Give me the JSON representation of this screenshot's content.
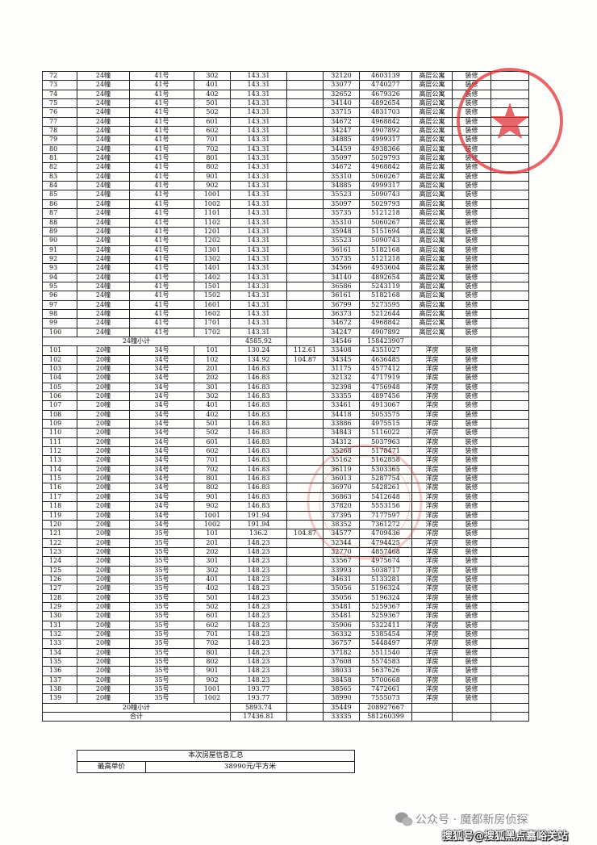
{
  "table": {
    "rows": [
      [
        "72",
        "24幢",
        "41号",
        "302",
        "143.31",
        null,
        "32120",
        "4603139",
        "高层公寓",
        "装修"
      ],
      [
        "73",
        "24幢",
        "41号",
        "401",
        "143.31",
        null,
        "33077",
        "4740277",
        "高层公寓",
        "装修"
      ],
      [
        "74",
        "24幢",
        "41号",
        "402",
        "143.31",
        null,
        "32652",
        "4679326",
        "高层公寓",
        "装修"
      ],
      [
        "75",
        "24幢",
        "41号",
        "501",
        "143.31",
        null,
        "34140",
        "4892654",
        "高层公寓",
        "装修"
      ],
      [
        "76",
        "24幢",
        "41号",
        "502",
        "143.31",
        null,
        "33715",
        "4831703",
        "高层公寓",
        "装修"
      ],
      [
        "77",
        "24幢",
        "41号",
        "601",
        "143.31",
        null,
        "34672",
        "4968842",
        "高层公寓",
        "装修"
      ],
      [
        "78",
        "24幢",
        "41号",
        "602",
        "143.31",
        null,
        "34247",
        "4907892",
        "高层公寓",
        "装修"
      ],
      [
        "79",
        "24幢",
        "41号",
        "701",
        "143.31",
        null,
        "34885",
        "4999317",
        "高层公寓",
        "装修"
      ],
      [
        "80",
        "24幢",
        "41号",
        "702",
        "143.31",
        null,
        "34459",
        "4938366",
        "高层公寓",
        "装修"
      ],
      [
        "81",
        "24幢",
        "41号",
        "801",
        "143.31",
        null,
        "35097",
        "5029793",
        "高层公寓",
        "装修"
      ],
      [
        "82",
        "24幢",
        "41号",
        "802",
        "143.31",
        null,
        "34672",
        "4968842",
        "高层公寓",
        "装修"
      ],
      [
        "83",
        "24幢",
        "41号",
        "901",
        "143.31",
        null,
        "35310",
        "5060267",
        "高层公寓",
        "装修"
      ],
      [
        "84",
        "24幢",
        "41号",
        "902",
        "143.31",
        null,
        "34885",
        "4999317",
        "高层公寓",
        "装修"
      ],
      [
        "85",
        "24幢",
        "41号",
        "1001",
        "143.31",
        null,
        "35523",
        "5090743",
        "高层公寓",
        "装修"
      ],
      [
        "86",
        "24幢",
        "41号",
        "1002",
        "143.31",
        null,
        "35097",
        "5029793",
        "高层公寓",
        "装修"
      ],
      [
        "87",
        "24幢",
        "41号",
        "1101",
        "143.31",
        null,
        "35735",
        "5121218",
        "高层公寓",
        "装修"
      ],
      [
        "88",
        "24幢",
        "41号",
        "1102",
        "143.31",
        null,
        "35310",
        "5060267",
        "高层公寓",
        "装修"
      ],
      [
        "89",
        "24幢",
        "41号",
        "1201",
        "143.31",
        null,
        "35948",
        "5151694",
        "高层公寓",
        "装修"
      ],
      [
        "90",
        "24幢",
        "41号",
        "1202",
        "143.31",
        null,
        "35523",
        "5090743",
        "高层公寓",
        "装修"
      ],
      [
        "91",
        "24幢",
        "41号",
        "1301",
        "143.31",
        null,
        "36161",
        "5182168",
        "高层公寓",
        "装修"
      ],
      [
        "92",
        "24幢",
        "41号",
        "1302",
        "143.31",
        null,
        "35735",
        "5121218",
        "高层公寓",
        "装修"
      ],
      [
        "93",
        "24幢",
        "41号",
        "1401",
        "143.31",
        null,
        "34566",
        "4953604",
        "高层公寓",
        "装修"
      ],
      [
        "94",
        "24幢",
        "41号",
        "1402",
        "143.31",
        null,
        "34140",
        "4892654",
        "高层公寓",
        "装修"
      ],
      [
        "95",
        "24幢",
        "41号",
        "1501",
        "143.31",
        null,
        "36586",
        "5243119",
        "高层公寓",
        "装修"
      ],
      [
        "96",
        "24幢",
        "41号",
        "1502",
        "143.31",
        null,
        "36161",
        "5182168",
        "高层公寓",
        "装修"
      ],
      [
        "97",
        "24幢",
        "41号",
        "1601",
        "143.31",
        null,
        "36799",
        "5273595",
        "高层公寓",
        "装修"
      ],
      [
        "98",
        "24幢",
        "41号",
        "1602",
        "143.31",
        null,
        "36373",
        "5212644",
        "高层公寓",
        "装修"
      ],
      [
        "99",
        "24幢",
        "41号",
        "1701",
        "143.31",
        null,
        "34672",
        "4968842",
        "高层公寓",
        "装修"
      ],
      [
        "100",
        "24幢",
        "41号",
        "1702",
        "143.31",
        null,
        "34247",
        "4907892",
        "高层公寓",
        "装修"
      ],
      {
        "label": "24幢小计",
        "area": "4585.92",
        "price": "34546",
        "total": "158423907"
      },
      [
        "101",
        "20幢",
        "34号",
        "101",
        "130.24",
        "112.61",
        "33408",
        "4351027",
        "洋房",
        "装修"
      ],
      [
        "102",
        "20幢",
        "34号",
        "102",
        "134.92",
        "104.87",
        "34345",
        "4636485",
        "洋房",
        "装修"
      ],
      [
        "103",
        "20幢",
        "34号",
        "201",
        "146.83",
        null,
        "31175",
        "4577412",
        "洋房",
        "装修"
      ],
      [
        "104",
        "20幢",
        "34号",
        "202",
        "146.83",
        null,
        "32132",
        "4717919",
        "洋房",
        "装修"
      ],
      [
        "105",
        "20幢",
        "34号",
        "301",
        "146.83",
        null,
        "32398",
        "4756948",
        "洋房",
        "装修"
      ],
      [
        "106",
        "20幢",
        "34号",
        "302",
        "146.83",
        null,
        "33355",
        "4897456",
        "洋房",
        "装修"
      ],
      [
        "107",
        "20幢",
        "34号",
        "401",
        "146.83",
        null,
        "33461",
        "4913067",
        "洋房",
        "装修"
      ],
      [
        "108",
        "20幢",
        "34号",
        "402",
        "146.83",
        null,
        "34418",
        "5053575",
        "洋房",
        "装修"
      ],
      [
        "109",
        "20幢",
        "34号",
        "501",
        "146.83",
        null,
        "33886",
        "4975515",
        "洋房",
        "装修"
      ],
      [
        "110",
        "20幢",
        "34号",
        "502",
        "146.83",
        null,
        "34843",
        "5116022",
        "洋房",
        "装修"
      ],
      [
        "111",
        "20幢",
        "34号",
        "601",
        "146.83",
        null,
        "34312",
        "5037963",
        "洋房",
        "装修"
      ],
      [
        "112",
        "20幢",
        "34号",
        "602",
        "146.83",
        null,
        "35268",
        "5178471",
        "洋房",
        "装修"
      ],
      [
        "113",
        "20幢",
        "34号",
        "701",
        "146.83",
        null,
        "35162",
        "5162858",
        "洋房",
        "装修"
      ],
      [
        "114",
        "20幢",
        "34号",
        "702",
        "146.83",
        null,
        "36119",
        "5303365",
        "洋房",
        "装修"
      ],
      [
        "115",
        "20幢",
        "34号",
        "801",
        "146.83",
        null,
        "36013",
        "5287754",
        "洋房",
        "装修"
      ],
      [
        "116",
        "20幢",
        "34号",
        "802",
        "146.83",
        null,
        "36970",
        "5428261",
        "洋房",
        "装修"
      ],
      [
        "117",
        "20幢",
        "34号",
        "901",
        "146.83",
        null,
        "36863",
        "5412648",
        "洋房",
        "装修"
      ],
      [
        "118",
        "20幢",
        "34号",
        "902",
        "146.83",
        null,
        "37820",
        "5553156",
        "洋房",
        "装修"
      ],
      [
        "119",
        "20幢",
        "34号",
        "1001",
        "191.94",
        null,
        "37395",
        "7177597",
        "洋房",
        "装修"
      ],
      [
        "120",
        "20幢",
        "34号",
        "1002",
        "191.94",
        null,
        "38352",
        "7361272",
        "洋房",
        "装修"
      ],
      [
        "121",
        "20幢",
        "35号",
        "101",
        "136.2",
        "104.87",
        "34577",
        "4709436",
        "洋房",
        "装修"
      ],
      [
        "122",
        "20幢",
        "35号",
        "201",
        "148.23",
        null,
        "32344",
        "4794425",
        "洋房",
        "装修"
      ],
      [
        "123",
        "20幢",
        "35号",
        "202",
        "148.23",
        null,
        "32770",
        "4857468",
        "洋房",
        "装修"
      ],
      [
        "124",
        "20幢",
        "35号",
        "301",
        "148.23",
        null,
        "33567",
        "4975674",
        "洋房",
        "装修"
      ],
      [
        "125",
        "20幢",
        "35号",
        "302",
        "148.23",
        null,
        "33993",
        "5038717",
        "洋房",
        "装修"
      ],
      [
        "126",
        "20幢",
        "35号",
        "401",
        "148.23",
        null,
        "34631",
        "5133281",
        "洋房",
        "装修"
      ],
      [
        "127",
        "20幢",
        "35号",
        "402",
        "148.23",
        null,
        "35056",
        "5196324",
        "洋房",
        "装修"
      ],
      [
        "128",
        "20幢",
        "35号",
        "501",
        "148.23",
        null,
        "35056",
        "5196324",
        "洋房",
        "装修"
      ],
      [
        "129",
        "20幢",
        "35号",
        "502",
        "148.23",
        null,
        "35481",
        "5259367",
        "洋房",
        "装修"
      ],
      [
        "130",
        "20幢",
        "35号",
        "601",
        "148.23",
        null,
        "35481",
        "5259367",
        "洋房",
        "装修"
      ],
      [
        "131",
        "20幢",
        "35号",
        "602",
        "148.23",
        null,
        "35906",
        "5322411",
        "洋房",
        "装修"
      ],
      [
        "132",
        "20幢",
        "35号",
        "701",
        "148.23",
        null,
        "36332",
        "5385454",
        "洋房",
        "装修"
      ],
      [
        "133",
        "20幢",
        "35号",
        "702",
        "148.23",
        null,
        "36757",
        "5448497",
        "洋房",
        "装修"
      ],
      [
        "134",
        "20幢",
        "35号",
        "801",
        "148.23",
        null,
        "37182",
        "5511540",
        "洋房",
        "装修"
      ],
      [
        "135",
        "20幢",
        "35号",
        "802",
        "148.23",
        null,
        "37608",
        "5574583",
        "洋房",
        "装修"
      ],
      [
        "136",
        "20幢",
        "35号",
        "901",
        "148.23",
        null,
        "38033",
        "5637626",
        "洋房",
        "装修"
      ],
      [
        "137",
        "20幢",
        "35号",
        "902",
        "148.23",
        null,
        "38458",
        "5700668",
        "洋房",
        "装修"
      ],
      [
        "138",
        "20幢",
        "35号",
        "1001",
        "193.77",
        null,
        "38565",
        "7472661",
        "洋房",
        "装修"
      ],
      [
        "139",
        "20幢",
        "35号",
        "1002",
        "193.77",
        null,
        "38990",
        "7555073",
        "洋房",
        "装修"
      ],
      {
        "label": "20幢小计",
        "area": "5893.74",
        "price": "35449",
        "total": "208927667"
      },
      {
        "label": "合计",
        "area": "17436.81",
        "price": "33335",
        "total": "581260399"
      }
    ]
  },
  "summary": {
    "title": "本次房屋信息汇总",
    "label": "最高单价",
    "value": "38990元/平方米"
  },
  "watermark": {
    "line1": "公众号 · 魔都新房侦探",
    "line2": "搜狐号@搜狐黑点嘉峪关站"
  }
}
